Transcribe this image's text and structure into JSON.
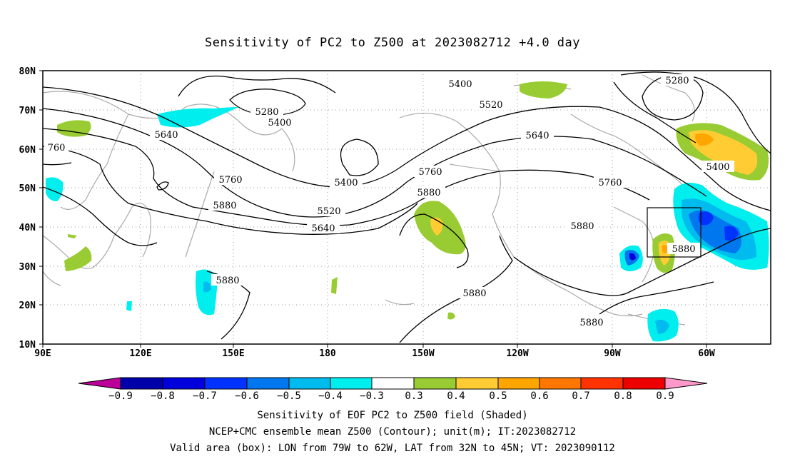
{
  "title": "Sensitivity of PC2 to Z500 at 2023082712 +4.0 day",
  "lat_ticks": [
    "80N",
    "70N",
    "60N",
    "50N",
    "40N",
    "30N",
    "20N",
    "10N"
  ],
  "lon_ticks": [
    "90E",
    "120E",
    "150E",
    "180",
    "150W",
    "120W",
    "90W",
    "60W"
  ],
  "contour_labels": [
    {
      "id": "c5400a",
      "text": "5400"
    },
    {
      "id": "c5280a",
      "text": "5280"
    },
    {
      "id": "c5280b",
      "text": "5280"
    },
    {
      "id": "c5400b",
      "text": "5400"
    },
    {
      "id": "c5520a",
      "text": "5520"
    },
    {
      "id": "c5640a",
      "text": "5640"
    },
    {
      "id": "c5640b",
      "text": "5640"
    },
    {
      "id": "c760",
      "text": "760"
    },
    {
      "id": "c5760a",
      "text": "5760"
    },
    {
      "id": "c5760b",
      "text": "5760"
    },
    {
      "id": "c5760c",
      "text": "5760"
    },
    {
      "id": "c5880a",
      "text": "5880"
    },
    {
      "id": "c5880b",
      "text": "5880"
    },
    {
      "id": "c5880c",
      "text": "5880"
    },
    {
      "id": "c5880d",
      "text": "5880"
    },
    {
      "id": "c5880e",
      "text": "5880"
    },
    {
      "id": "c5880f",
      "text": "5880"
    },
    {
      "id": "c5880g",
      "text": "5880"
    },
    {
      "id": "c5400c",
      "text": "5400"
    },
    {
      "id": "c5400d",
      "text": "5400"
    },
    {
      "id": "c5520b",
      "text": "5520"
    },
    {
      "id": "c5640c",
      "text": "5640"
    }
  ],
  "colorbar": {
    "labels": [
      "−0.9",
      "−0.8",
      "−0.7",
      "−0.6",
      "−0.5",
      "−0.4",
      "−0.3",
      "0.3",
      "0.4",
      "0.5",
      "0.6",
      "0.7",
      "0.8",
      "0.9"
    ],
    "colors": [
      "#bb0099",
      "#0000aa",
      "#0000dd",
      "#0033ff",
      "#0077ee",
      "#00bbee",
      "#00eeee",
      "#ffffff",
      "#99cc33",
      "#ffcc33",
      "#ffa500",
      "#ff7700",
      "#ff3300",
      "#ee0000",
      "#ff99cc"
    ]
  },
  "captions": {
    "line1": "Sensitivity of EOF PC2 to Z500 field (Shaded)",
    "line2": "NCEP+CMC ensemble mean Z500 (Contour); unit(m); IT:2023082712",
    "line3": "Valid area (box): LON from 79W to 62W, LAT from 32N to 45N; VT: 2023090112"
  }
}
